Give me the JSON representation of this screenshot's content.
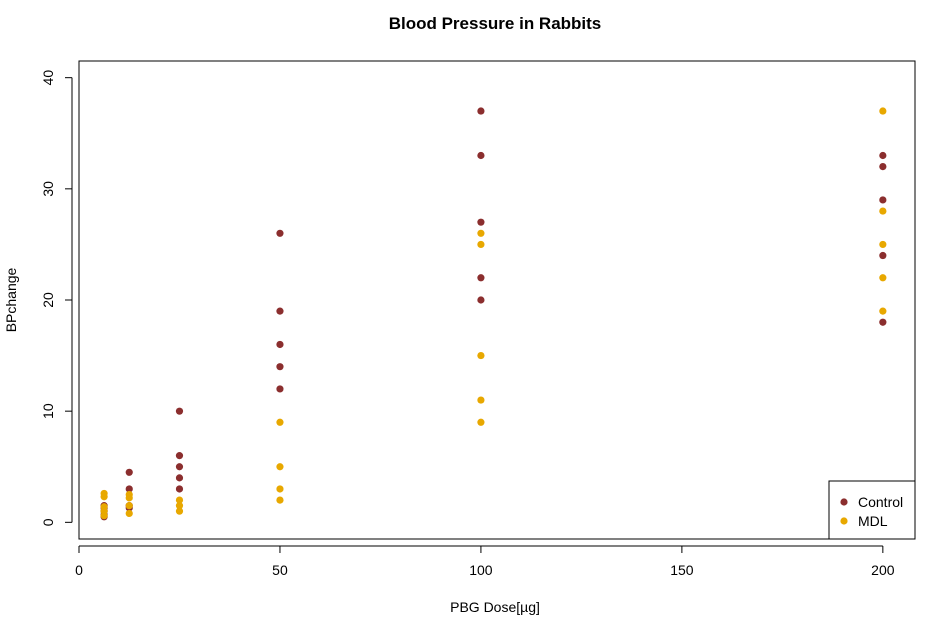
{
  "chart_data": {
    "type": "scatter",
    "title": "Blood Pressure in Rabbits",
    "xlabel": "PBG Dose[µg]",
    "ylabel": "BPchange",
    "xlim": [
      0,
      208
    ],
    "ylim": [
      -1.5,
      41.5
    ],
    "xticks": [
      0,
      50,
      100,
      150,
      200
    ],
    "yticks": [
      0,
      10,
      20,
      30,
      40
    ],
    "grid": false,
    "legend_position": "bottom-right",
    "series": [
      {
        "name": "Control",
        "color": "#8B2E2E",
        "points": [
          [
            6.25,
            0.5
          ],
          [
            6.25,
            0.7
          ],
          [
            6.25,
            1.0
          ],
          [
            6.25,
            1.3
          ],
          [
            6.25,
            1.5
          ],
          [
            12.5,
            1.3
          ],
          [
            12.5,
            1.5
          ],
          [
            12.5,
            3.0
          ],
          [
            12.5,
            4.5
          ],
          [
            25,
            3.0
          ],
          [
            25,
            4.0
          ],
          [
            25,
            5.0
          ],
          [
            25,
            6.0
          ],
          [
            25,
            10.0
          ],
          [
            50,
            12.0
          ],
          [
            50,
            14.0
          ],
          [
            50,
            16.0
          ],
          [
            50,
            19.0
          ],
          [
            50,
            26.0
          ],
          [
            100,
            20.0
          ],
          [
            100,
            22.0
          ],
          [
            100,
            27.0
          ],
          [
            100,
            33.0
          ],
          [
            100,
            37.0
          ],
          [
            200,
            18.0
          ],
          [
            200,
            24.0
          ],
          [
            200,
            29.0
          ],
          [
            200,
            32.0
          ],
          [
            200,
            33.0
          ]
        ]
      },
      {
        "name": "MDL",
        "color": "#E8A800",
        "points": [
          [
            6.25,
            0.6
          ],
          [
            6.25,
            1.0
          ],
          [
            6.25,
            1.4
          ],
          [
            6.25,
            2.3
          ],
          [
            6.25,
            2.6
          ],
          [
            12.5,
            0.8
          ],
          [
            12.5,
            1.5
          ],
          [
            12.5,
            2.2
          ],
          [
            12.5,
            2.5
          ],
          [
            25,
            1.0
          ],
          [
            25,
            1.5
          ],
          [
            25,
            2.0
          ],
          [
            50,
            2.0
          ],
          [
            50,
            3.0
          ],
          [
            50,
            5.0
          ],
          [
            50,
            9.0
          ],
          [
            100,
            9.0
          ],
          [
            100,
            11.0
          ],
          [
            100,
            15.0
          ],
          [
            100,
            25.0
          ],
          [
            100,
            26.0
          ],
          [
            200,
            19.0
          ],
          [
            200,
            22.0
          ],
          [
            200,
            25.0
          ],
          [
            200,
            28.0
          ],
          [
            200,
            37.0
          ]
        ]
      }
    ]
  }
}
